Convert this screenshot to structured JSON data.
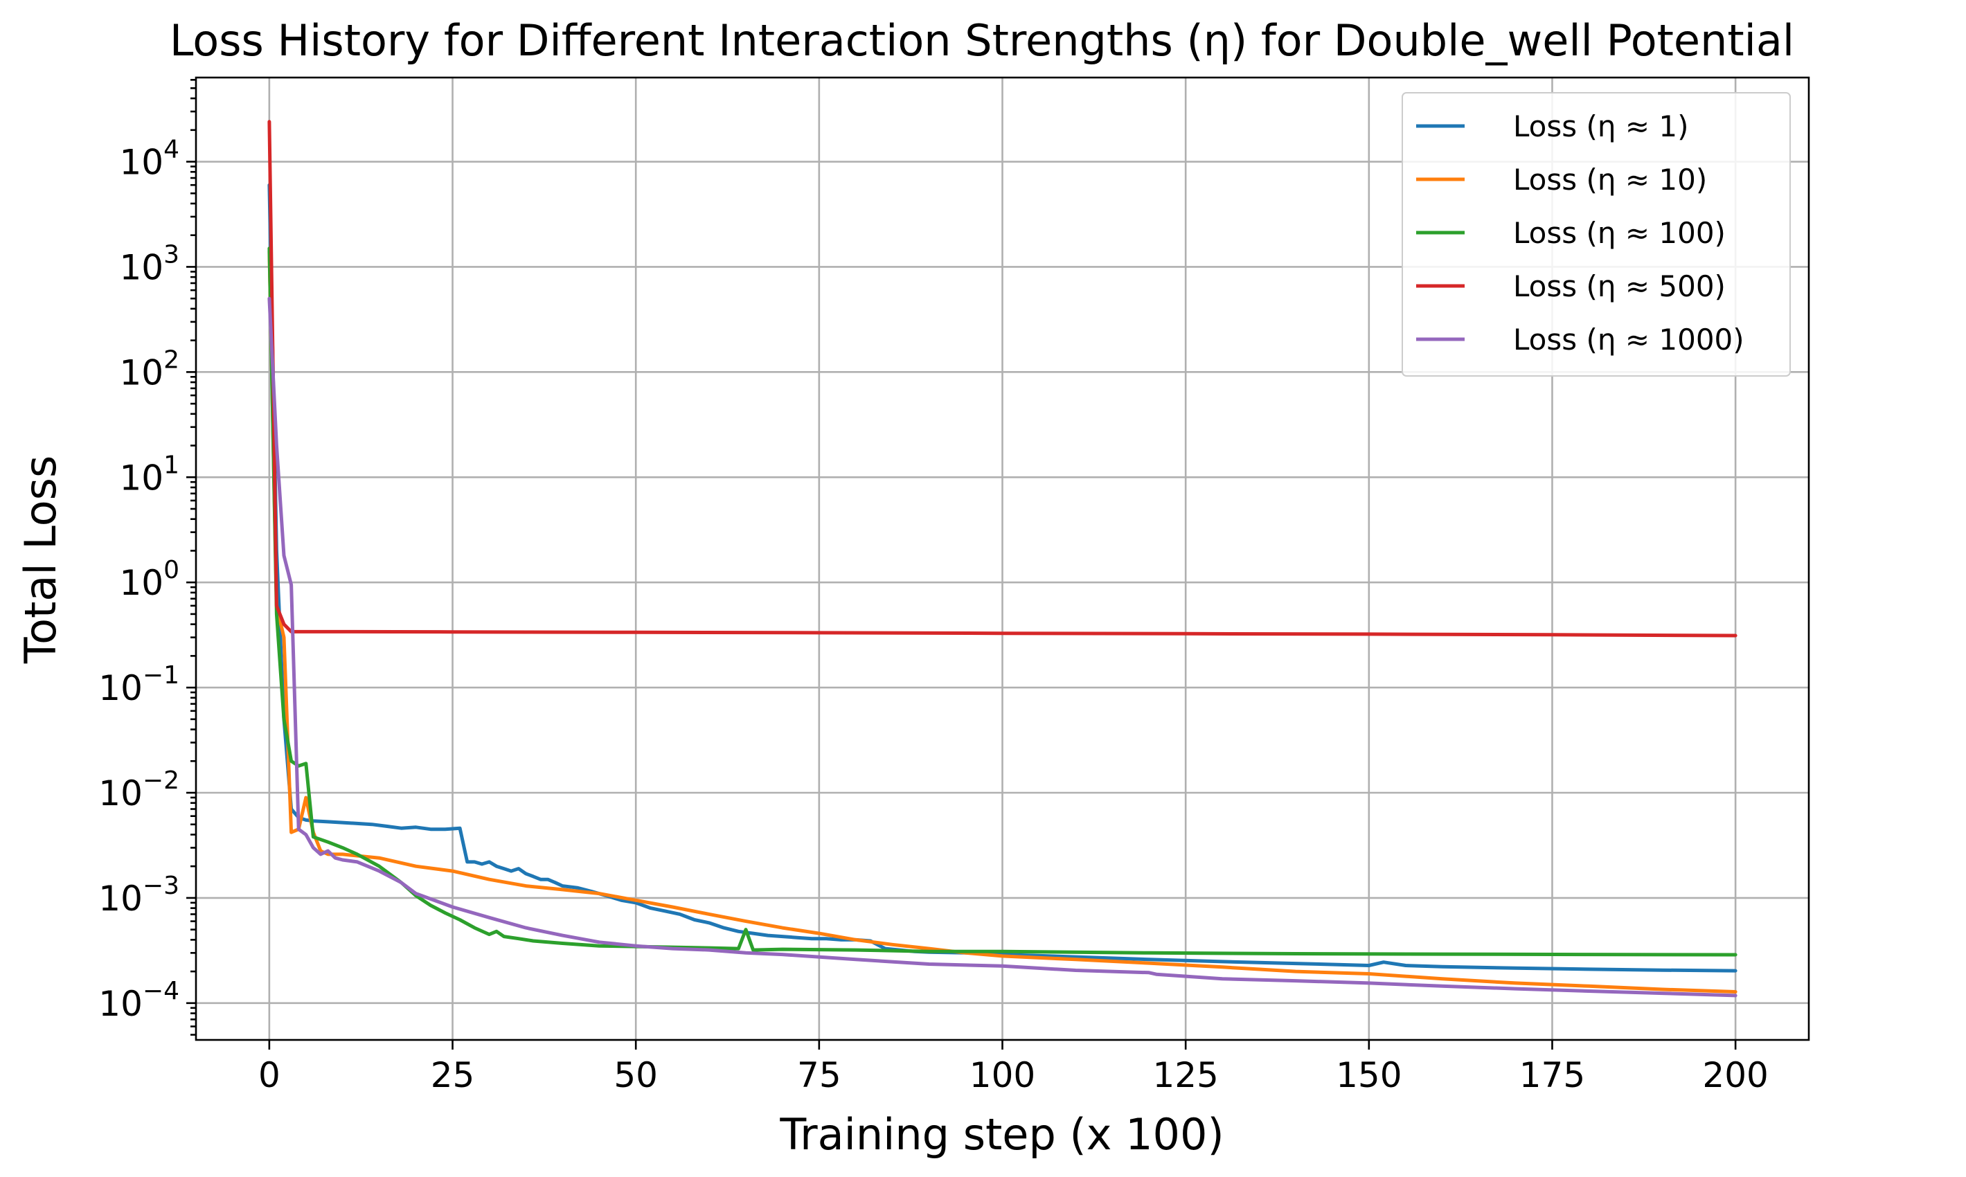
{
  "chart_data": {
    "type": "line",
    "title": "Loss History for Different Interaction Strengths (η) for Double_well Potential",
    "xlabel": "Training step (x 100)",
    "ylabel": "Total Loss",
    "xlim": [
      -10,
      210
    ],
    "ylim_log10": [
      -4.35,
      4.8
    ],
    "y_scale": "log",
    "grid": true,
    "legend_position": "top-right",
    "x_ticks": [
      0,
      25,
      50,
      75,
      100,
      125,
      150,
      175,
      200
    ],
    "x_tick_labels": [
      "0",
      "25",
      "50",
      "75",
      "100",
      "125",
      "150",
      "175",
      "200"
    ],
    "y_tick_exponents": [
      -4,
      -3,
      -2,
      -1,
      0,
      1,
      2,
      3,
      4
    ],
    "y_tick_base": "10",
    "y_tick_exponent_labels": [
      "−4",
      "−3",
      "−2",
      "−1",
      "0",
      "1",
      "2",
      "3",
      "4"
    ],
    "series": [
      {
        "name": "Loss (η ≈ 1)",
        "color": "#1f77b4",
        "x": [
          0,
          1,
          2,
          3,
          4,
          5,
          6,
          8,
          10,
          12,
          14,
          16,
          18,
          20,
          22,
          24,
          26,
          27,
          28,
          29,
          30,
          31,
          32,
          33,
          34,
          35,
          36,
          37,
          38,
          39,
          40,
          42,
          44,
          46,
          48,
          50,
          52,
          54,
          56,
          58,
          60,
          62,
          64,
          66,
          68,
          70,
          72,
          74,
          76,
          78,
          80,
          82,
          84,
          86,
          88,
          90,
          95,
          100,
          110,
          120,
          130,
          140,
          150,
          152,
          155,
          160,
          170,
          180,
          190,
          200
        ],
        "y": [
          6000,
          2.0,
          0.05,
          0.007,
          0.0058,
          0.0055,
          0.0054,
          0.0053,
          0.0052,
          0.0051,
          0.005,
          0.0048,
          0.0046,
          0.0047,
          0.0045,
          0.0045,
          0.0046,
          0.0022,
          0.0022,
          0.0021,
          0.0022,
          0.002,
          0.0019,
          0.0018,
          0.0019,
          0.0017,
          0.0016,
          0.0015,
          0.0015,
          0.0014,
          0.0013,
          0.00125,
          0.00115,
          0.00105,
          0.00095,
          0.0009,
          0.0008,
          0.00075,
          0.0007,
          0.00062,
          0.00058,
          0.00052,
          0.00048,
          0.00046,
          0.00044,
          0.00043,
          0.00042,
          0.00041,
          0.00041,
          0.0004,
          0.0004,
          0.00039,
          0.00033,
          0.00032,
          0.00031,
          0.000305,
          0.0003,
          0.00029,
          0.000275,
          0.00026,
          0.000248,
          0.000238,
          0.000228,
          0.000245,
          0.000228,
          0.000222,
          0.000215,
          0.00021,
          0.000206,
          0.000203
        ]
      },
      {
        "name": "Loss (η ≈ 10)",
        "color": "#ff7f0e",
        "x": [
          0,
          1,
          2,
          3,
          4,
          5,
          6,
          7,
          8,
          10,
          15,
          20,
          25,
          30,
          35,
          40,
          45,
          50,
          55,
          60,
          65,
          70,
          75,
          80,
          85,
          90,
          95,
          100,
          110,
          120,
          130,
          140,
          150,
          160,
          170,
          180,
          190,
          200
        ],
        "y": [
          1400,
          0.6,
          0.3,
          0.0042,
          0.0045,
          0.009,
          0.0042,
          0.0028,
          0.0026,
          0.0026,
          0.0024,
          0.002,
          0.0018,
          0.0015,
          0.0013,
          0.0012,
          0.0011,
          0.00095,
          0.00082,
          0.0007,
          0.0006,
          0.00052,
          0.00046,
          0.0004,
          0.00036,
          0.00033,
          0.0003,
          0.00028,
          0.00026,
          0.00024,
          0.00022,
          0.0002,
          0.00019,
          0.00017,
          0.000155,
          0.000145,
          0.000135,
          0.000128
        ]
      },
      {
        "name": "Loss (η ≈ 100)",
        "color": "#2ca02c",
        "x": [
          0,
          1,
          2,
          3,
          4,
          5,
          6,
          8,
          10,
          12,
          15,
          18,
          20,
          22,
          24,
          26,
          28,
          30,
          31,
          32,
          34,
          36,
          40,
          45,
          50,
          55,
          60,
          64,
          65,
          66,
          70,
          80,
          90,
          100,
          120,
          140,
          160,
          180,
          200
        ],
        "y": [
          1500,
          0.5,
          0.05,
          0.02,
          0.018,
          0.019,
          0.0038,
          0.0034,
          0.003,
          0.0026,
          0.002,
          0.0014,
          0.00105,
          0.00085,
          0.00072,
          0.00062,
          0.00052,
          0.00045,
          0.00048,
          0.00043,
          0.00041,
          0.00039,
          0.00037,
          0.00035,
          0.000345,
          0.00034,
          0.000335,
          0.00033,
          0.0005,
          0.00032,
          0.000325,
          0.00032,
          0.00031,
          0.00031,
          0.0003,
          0.000295,
          0.000292,
          0.00029,
          0.000288
        ]
      },
      {
        "name": "Loss (η ≈ 500)",
        "color": "#d62728",
        "x": [
          0,
          1,
          2,
          3,
          5,
          10,
          25,
          50,
          75,
          100,
          125,
          150,
          175,
          200
        ],
        "y": [
          24000,
          0.6,
          0.4,
          0.34,
          0.34,
          0.34,
          0.338,
          0.335,
          0.332,
          0.328,
          0.325,
          0.322,
          0.318,
          0.312
        ]
      },
      {
        "name": "Loss (η ≈ 1000)",
        "color": "#9467bd",
        "x": [
          0,
          1,
          2,
          3,
          4,
          5,
          6,
          7,
          8,
          9,
          10,
          12,
          15,
          18,
          20,
          25,
          30,
          35,
          40,
          45,
          50,
          55,
          60,
          65,
          70,
          80,
          90,
          100,
          110,
          120,
          121,
          125,
          130,
          140,
          150,
          160,
          170,
          180,
          190,
          200
        ],
        "y": [
          500,
          20,
          1.8,
          0.95,
          0.0045,
          0.004,
          0.003,
          0.0026,
          0.0028,
          0.0024,
          0.0023,
          0.0022,
          0.0018,
          0.0014,
          0.0011,
          0.00082,
          0.00065,
          0.00052,
          0.00044,
          0.00038,
          0.00035,
          0.00033,
          0.00032,
          0.0003,
          0.00029,
          0.00026,
          0.000235,
          0.000225,
          0.000205,
          0.000195,
          0.000188,
          0.00018,
          0.00017,
          0.000163,
          0.000155,
          0.000145,
          0.000137,
          0.00013,
          0.000124,
          0.000118
        ]
      }
    ]
  }
}
